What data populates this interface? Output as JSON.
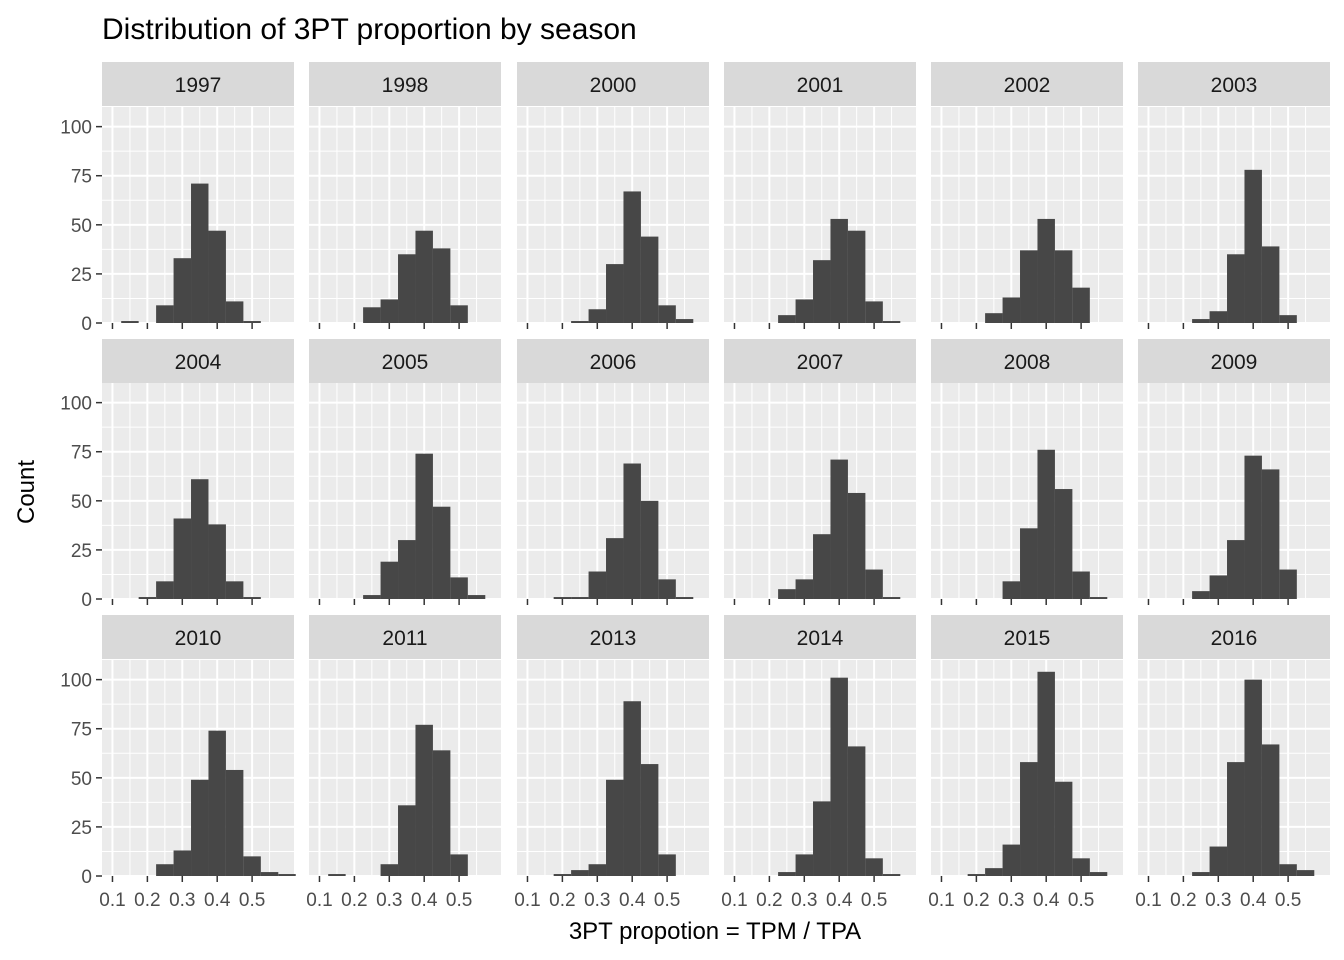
{
  "chart_data": {
    "type": "bar",
    "title": "Distribution of 3PT proportion by season",
    "xlabel": "3PT propotion = TPM / TPA",
    "ylabel": "Count",
    "xlim": [
      0.07,
      0.62
    ],
    "ylim": [
      0,
      110
    ],
    "x_ticks": [
      0.1,
      0.2,
      0.3,
      0.4,
      0.5
    ],
    "x_tick_labels": [
      "0.1",
      "0.2",
      "0.3",
      "0.4",
      "0.5"
    ],
    "y_ticks": [
      0,
      25,
      50,
      75,
      100
    ],
    "y_tick_labels": [
      "0",
      "25",
      "50",
      "75",
      "100"
    ],
    "bin_width": 0.05,
    "bin_centers": [
      0.1,
      0.15,
      0.2,
      0.25,
      0.3,
      0.35,
      0.4,
      0.45,
      0.5,
      0.55,
      0.6
    ],
    "grid": true,
    "facets": [
      {
        "label": "1997",
        "counts": [
          0,
          1,
          0,
          9,
          33,
          71,
          47,
          11,
          1,
          0,
          0
        ]
      },
      {
        "label": "1998",
        "counts": [
          0,
          0,
          0,
          8,
          12,
          35,
          47,
          38,
          9,
          0,
          0
        ]
      },
      {
        "label": "2000",
        "counts": [
          0,
          0,
          0,
          1,
          7,
          30,
          67,
          44,
          9,
          2,
          0
        ]
      },
      {
        "label": "2001",
        "counts": [
          0,
          0,
          0,
          4,
          12,
          32,
          53,
          47,
          11,
          1,
          0
        ]
      },
      {
        "label": "2002",
        "counts": [
          0,
          0,
          0,
          5,
          13,
          37,
          53,
          37,
          18,
          0,
          0
        ]
      },
      {
        "label": "2003",
        "counts": [
          0,
          0,
          0,
          2,
          6,
          35,
          78,
          39,
          4,
          0,
          0
        ]
      },
      {
        "label": "2004",
        "counts": [
          0,
          0,
          1,
          9,
          41,
          61,
          38,
          9,
          1,
          0,
          0
        ]
      },
      {
        "label": "2005",
        "counts": [
          0,
          0,
          0,
          2,
          19,
          30,
          74,
          47,
          11,
          2,
          0
        ]
      },
      {
        "label": "2006",
        "counts": [
          0,
          0,
          1,
          1,
          14,
          31,
          69,
          50,
          10,
          1,
          0
        ]
      },
      {
        "label": "2007",
        "counts": [
          0,
          0,
          0,
          5,
          10,
          33,
          71,
          54,
          15,
          1,
          0
        ]
      },
      {
        "label": "2008",
        "counts": [
          0,
          0,
          0,
          0,
          9,
          36,
          76,
          56,
          14,
          1,
          0
        ]
      },
      {
        "label": "2009",
        "counts": [
          0,
          0,
          0,
          4,
          12,
          30,
          73,
          66,
          15,
          0,
          0
        ]
      },
      {
        "label": "2010",
        "counts": [
          0,
          0,
          0,
          6,
          13,
          49,
          74,
          54,
          10,
          2,
          1
        ]
      },
      {
        "label": "2011",
        "counts": [
          0,
          1,
          0,
          0,
          6,
          36,
          77,
          64,
          11,
          0,
          0
        ]
      },
      {
        "label": "2013",
        "counts": [
          0,
          0,
          1,
          3,
          6,
          49,
          89,
          57,
          11,
          0,
          0
        ]
      },
      {
        "label": "2014",
        "counts": [
          0,
          0,
          0,
          2,
          11,
          38,
          101,
          66,
          9,
          1,
          0
        ]
      },
      {
        "label": "2015",
        "counts": [
          0,
          0,
          1,
          4,
          16,
          58,
          104,
          48,
          9,
          2,
          0
        ]
      },
      {
        "label": "2016",
        "counts": [
          0,
          0,
          0,
          2,
          15,
          58,
          100,
          67,
          6,
          3,
          0
        ]
      }
    ]
  },
  "colors": {
    "panel_bg": "#ebebeb",
    "strip_bg": "#d9d9d9",
    "grid": "#ffffff",
    "bar": "#474747",
    "text": "#000000",
    "tick_text": "#4d4d4d",
    "tick_mark": "#333333"
  }
}
